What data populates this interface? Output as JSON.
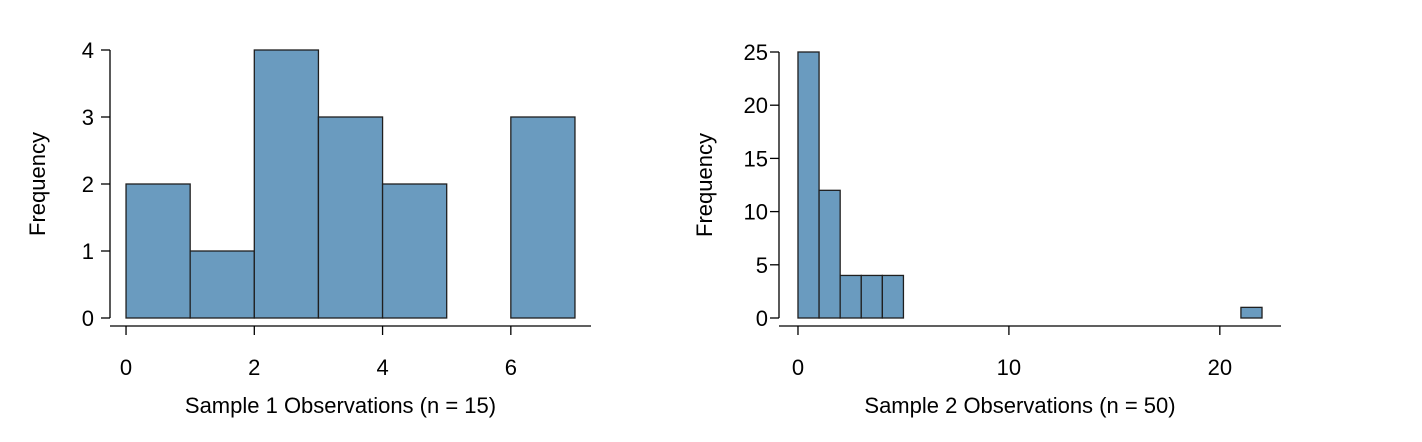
{
  "chart_data": [
    {
      "type": "bar",
      "subtype": "histogram",
      "title": "",
      "xlabel": "Sample 1 Observations (n = 15)",
      "ylabel": "Frequency",
      "bins": [
        {
          "start": 0,
          "end": 1,
          "count": 2
        },
        {
          "start": 1,
          "end": 2,
          "count": 1
        },
        {
          "start": 2,
          "end": 3,
          "count": 4
        },
        {
          "start": 3,
          "end": 4,
          "count": 3
        },
        {
          "start": 4,
          "end": 5,
          "count": 2
        },
        {
          "start": 5,
          "end": 6,
          "count": 0
        },
        {
          "start": 6,
          "end": 7,
          "count": 3
        }
      ],
      "xlim": [
        -0.25,
        7.25
      ],
      "ylim": [
        0,
        4
      ],
      "xticks": [
        0,
        2,
        4,
        6
      ],
      "yticks": [
        0,
        1,
        2,
        3,
        4
      ],
      "grid": false,
      "legend": "none",
      "bar_color": "#6a9bbf"
    },
    {
      "type": "bar",
      "subtype": "histogram",
      "title": "",
      "xlabel": "Sample 2 Observations (n = 50)",
      "ylabel": "Frequency",
      "bins": [
        {
          "start": 0,
          "end": 1,
          "count": 25
        },
        {
          "start": 1,
          "end": 2,
          "count": 12
        },
        {
          "start": 2,
          "end": 3,
          "count": 4
        },
        {
          "start": 3,
          "end": 4,
          "count": 4
        },
        {
          "start": 4,
          "end": 5,
          "count": 4
        },
        {
          "start": 5,
          "end": 6,
          "count": 0
        },
        {
          "start": 6,
          "end": 7,
          "count": 0
        },
        {
          "start": 7,
          "end": 8,
          "count": 0
        },
        {
          "start": 8,
          "end": 9,
          "count": 0
        },
        {
          "start": 9,
          "end": 10,
          "count": 0
        },
        {
          "start": 10,
          "end": 11,
          "count": 0
        },
        {
          "start": 11,
          "end": 12,
          "count": 0
        },
        {
          "start": 12,
          "end": 13,
          "count": 0
        },
        {
          "start": 13,
          "end": 14,
          "count": 0
        },
        {
          "start": 14,
          "end": 15,
          "count": 0
        },
        {
          "start": 15,
          "end": 16,
          "count": 0
        },
        {
          "start": 16,
          "end": 17,
          "count": 0
        },
        {
          "start": 17,
          "end": 18,
          "count": 0
        },
        {
          "start": 18,
          "end": 19,
          "count": 0
        },
        {
          "start": 19,
          "end": 20,
          "count": 0
        },
        {
          "start": 20,
          "end": 21,
          "count": 0
        },
        {
          "start": 21,
          "end": 22,
          "count": 1
        }
      ],
      "xlim": [
        -0.9,
        22.9
      ],
      "ylim": [
        0,
        25
      ],
      "xticks": [
        0,
        10,
        20
      ],
      "yticks": [
        0,
        5,
        10,
        15,
        20,
        25
      ],
      "grid": false,
      "legend": "none",
      "bar_color": "#6a9bbf"
    }
  ]
}
